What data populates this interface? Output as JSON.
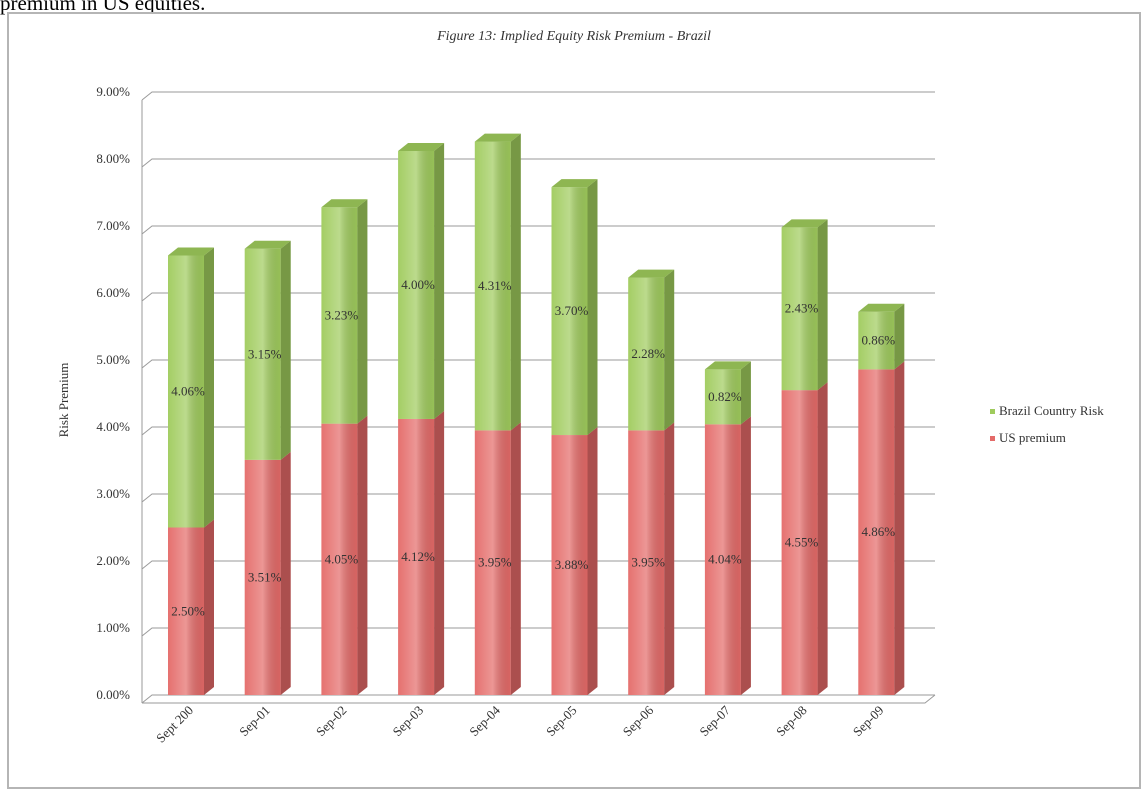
{
  "page_text": "premium in US equities.",
  "chart_data": {
    "type": "stacked-bar-3d",
    "title": "Figure 13: Implied Equity Risk Premium - Brazil",
    "y_label": "Risk Premium",
    "categories": [
      "Sept 200",
      "Sep-01",
      "Sep-02",
      "Sep-03",
      "Sep-04",
      "Sep-05",
      "Sep-06",
      "Sep-07",
      "Sep-08",
      "Sep-09"
    ],
    "series": [
      {
        "name": "US premium",
        "color": "#e46a68",
        "values": [
          2.5,
          3.51,
          4.05,
          4.12,
          3.95,
          3.88,
          3.95,
          4.04,
          4.55,
          4.86
        ],
        "value_labels": [
          "2.50%",
          "3.51%",
          "4.05%",
          "4.12%",
          "3.95%",
          "3.88%",
          "3.95%",
          "4.04%",
          "4.55%",
          "4.86%"
        ]
      },
      {
        "name": "Brazil Country Risk",
        "color": "#9fcb5c",
        "values": [
          4.06,
          3.15,
          3.23,
          4.0,
          4.31,
          3.7,
          2.28,
          0.82,
          2.43,
          0.86
        ],
        "value_labels": [
          "4.06%",
          "3.15%",
          "3.23%",
          "4.00%",
          "4.31%",
          "3.70%",
          "2.28%",
          "0.82%",
          "2.43%",
          "0.86%"
        ]
      }
    ],
    "ylim": [
      0,
      9
    ],
    "yticks": [
      {
        "value": 0,
        "label": "0.00%"
      },
      {
        "value": 1,
        "label": "1.00%"
      },
      {
        "value": 2,
        "label": "2.00%"
      },
      {
        "value": 3,
        "label": "3.00%"
      },
      {
        "value": 4,
        "label": "4.00%"
      },
      {
        "value": 5,
        "label": "5.00%"
      },
      {
        "value": 6,
        "label": "6.00%"
      },
      {
        "value": 7,
        "label": "7.00%"
      },
      {
        "value": 8,
        "label": "8.00%"
      },
      {
        "value": 9,
        "label": "9.00%"
      }
    ],
    "grid": true,
    "legend": "right"
  }
}
